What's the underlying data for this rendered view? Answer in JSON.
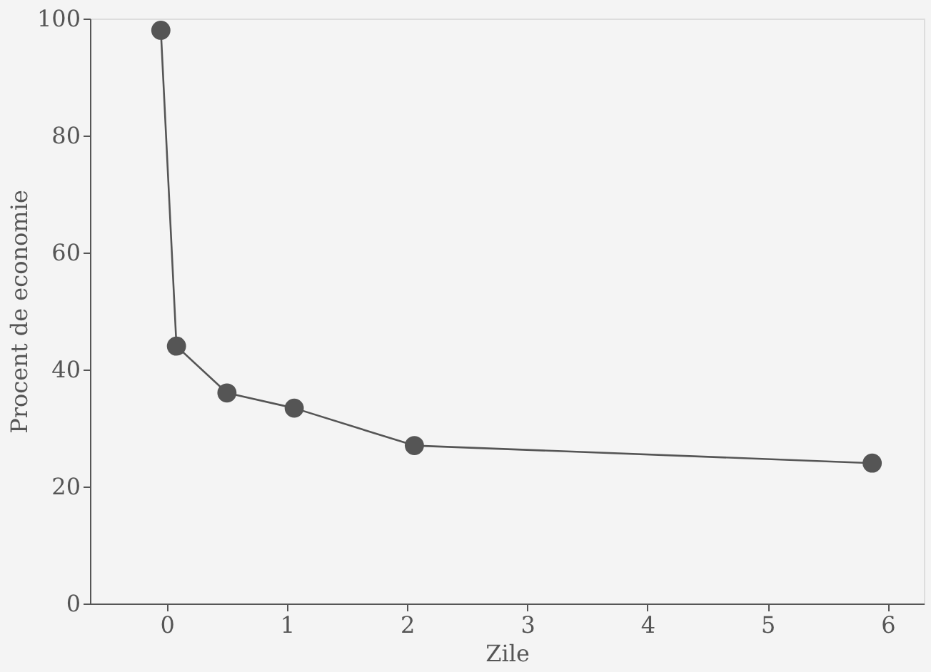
{
  "chart_data": {
    "type": "line",
    "xlabel": "Zile",
    "ylabel": "Procent de economie",
    "x": [
      -0.05,
      0.08,
      0.5,
      1.06,
      2.06,
      5.87
    ],
    "series": [
      {
        "color": "#555555",
        "values": [
          98,
          44,
          36,
          33.4,
          27,
          24
        ]
      }
    ],
    "xlim": [
      -0.64,
      6.3
    ],
    "xticks": [
      0,
      1,
      2,
      3,
      4,
      5,
      6
    ],
    "ylim": [
      0,
      100
    ],
    "yticks": [
      0,
      20,
      40,
      60,
      80,
      100
    ],
    "grid": false,
    "marker": "circle",
    "line_style": "solid"
  }
}
